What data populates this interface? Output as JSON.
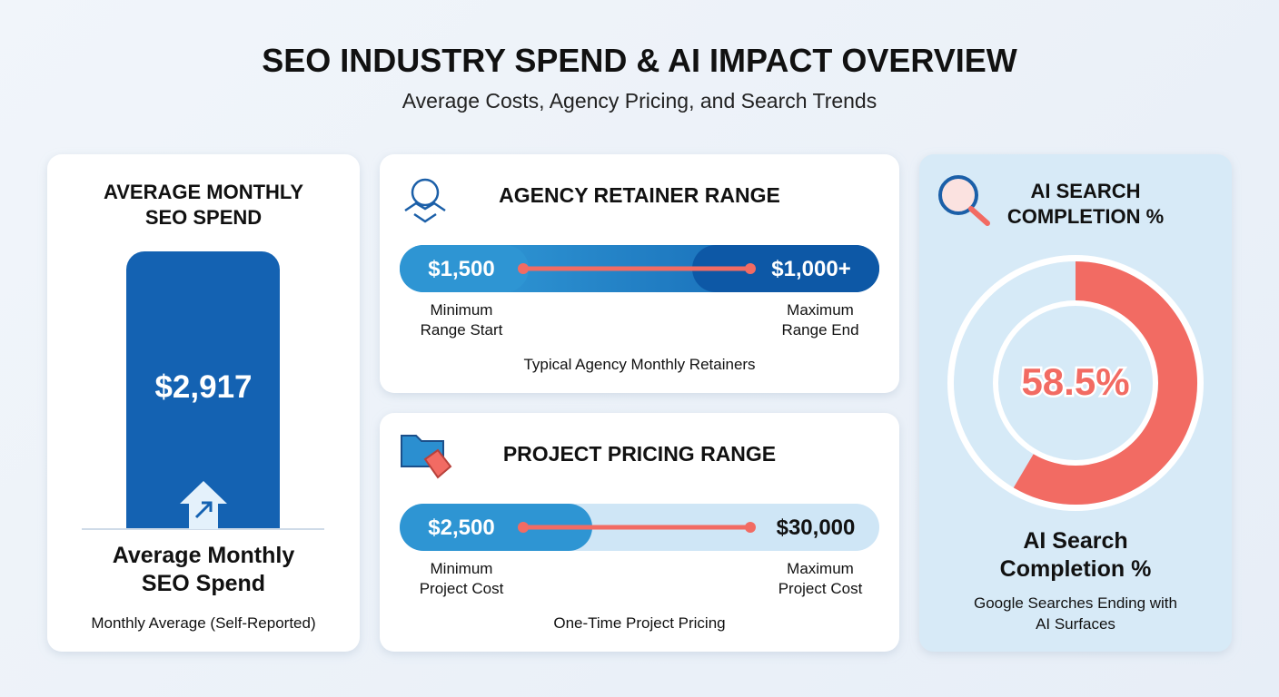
{
  "header": {
    "title": "SEO INDUSTRY SPEND & AI IMPACT OVERVIEW",
    "subtitle": "Average Costs, Agency Pricing, and Search Trends"
  },
  "spend_card": {
    "title": "AVERAGE MONTHLY SEO SPEND",
    "value": "$2,917",
    "label": "Average Monthly SEO Spend",
    "note": "Monthly Average (Self-Reported)"
  },
  "retainer_card": {
    "title": "AGENCY RETAINER RANGE",
    "min": "$1,500",
    "max": "$1,000+",
    "min_label": "Minimum Range Start",
    "max_label": "Maximum Range End",
    "note": "Typical Agency Monthly Retainers"
  },
  "project_card": {
    "title": "PROJECT PRICING RANGE",
    "min": "$2,500",
    "max": "$30,000",
    "min_label": "Minimum Project Cost",
    "max_label": "Maximum Project Cost",
    "note": "One-Time Project Pricing"
  },
  "ai_card": {
    "title": "AI SEARCH COMPLETION %",
    "value": 58.5,
    "value_label": "58.5%",
    "label": "AI Search Completion %",
    "note": "Google Searches Ending with AI Surfaces"
  }
}
